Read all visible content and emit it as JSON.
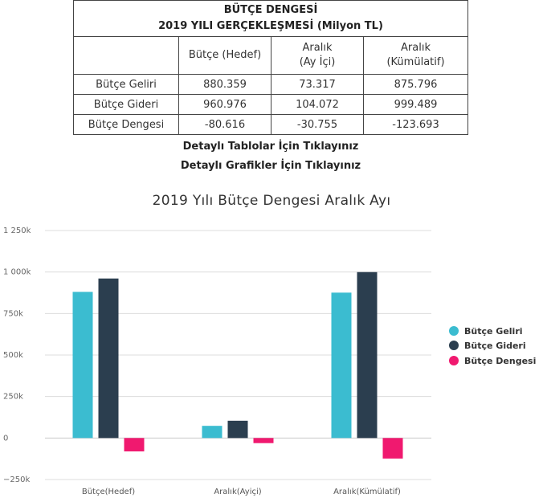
{
  "table": {
    "title_line1": "BÜTÇE DENGESİ",
    "title_line2": "2019 YILI GERÇEKLEŞMESİ (Milyon TL)",
    "headers": [
      {
        "line1": "Bütçe (Hedef)",
        "line2": ""
      },
      {
        "line1": "Aralık",
        "line2": "(Ay İçi)"
      },
      {
        "line1": "Aralık",
        "line2": "(Kümülatif)"
      }
    ],
    "rows": [
      {
        "label": "Bütçe Geliri",
        "cells": [
          "880.359",
          "73.317",
          "875.796"
        ]
      },
      {
        "label": "Bütçe Gideri",
        "cells": [
          "960.976",
          "104.072",
          "999.489"
        ]
      },
      {
        "label": "Bütçe Dengesi",
        "cells": [
          "-80.616",
          "-30.755",
          "-123.693"
        ]
      }
    ]
  },
  "links": {
    "tables": "Detaylı Tablolar İçin Tıklayınız",
    "graphs": "Detaylı Grafikler İçin Tıklayınız"
  },
  "chart_data": {
    "type": "bar",
    "title": "2019 Yılı Bütçe Dengesi Aralık Ayı",
    "categories": [
      "Bütçe(Hedef)",
      "Aralık(Ayiçi)",
      "Aralık(Kümülatif)"
    ],
    "series": [
      {
        "name": "Bütçe Geliri",
        "color": "#3bbcd0",
        "values": [
          880359,
          73317,
          875796
        ]
      },
      {
        "name": "Bütçe Gideri",
        "color": "#2b3e4f",
        "values": [
          960976,
          104072,
          999489
        ]
      },
      {
        "name": "Bütçe Dengesi",
        "color": "#f0196f",
        "values": [
          -80616,
          -30755,
          -123693
        ]
      }
    ],
    "ylim": [
      -250000,
      1250000
    ],
    "yticks": [
      {
        "value": 1250000,
        "label": "1 250k"
      },
      {
        "value": 1000000,
        "label": "1 000k"
      },
      {
        "value": 750000,
        "label": "750k"
      },
      {
        "value": 500000,
        "label": "500k"
      },
      {
        "value": 250000,
        "label": "250k"
      },
      {
        "value": 0,
        "label": "0"
      },
      {
        "value": -250000,
        "label": "−250k"
      }
    ],
    "grid": true,
    "legend_position": "right"
  }
}
